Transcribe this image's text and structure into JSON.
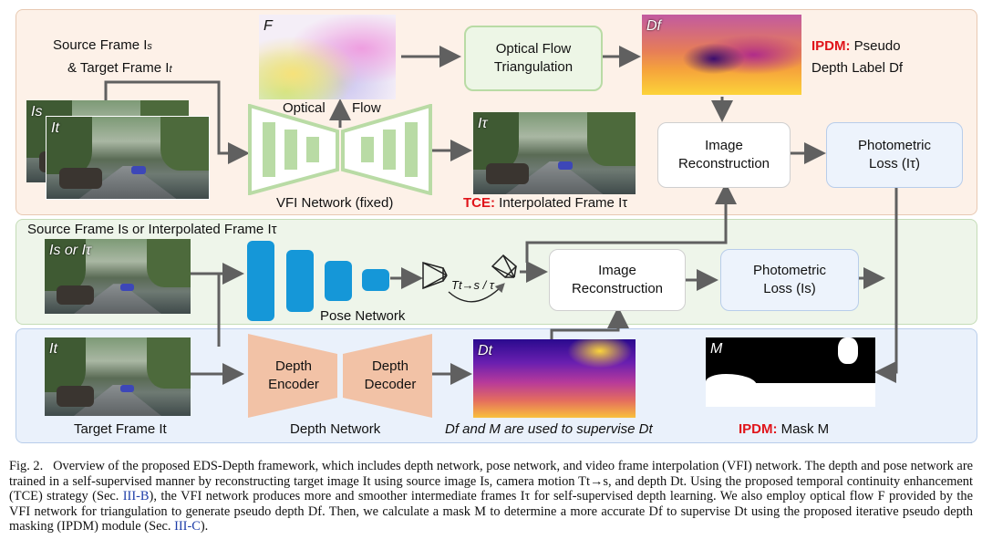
{
  "top": {
    "source_target_line1": "Source Frame I",
    "source_sub": "s",
    "source_target_line2": "& Target Frame I",
    "target_sub": "t",
    "img_is_tag": "Is",
    "img_it_tag": "It",
    "flow_tag": "F",
    "optical_label": "Optical",
    "flow_label": "Flow",
    "vfi_label": "VFI Network (fixed)",
    "oft_line1": "Optical Flow",
    "oft_line2": "Triangulation",
    "df_tag": "Df",
    "ipdm_red": "IPDM:",
    "ipdm_rest": " Pseudo",
    "ipdm_line2": "Depth Label Df",
    "itau_tag": "Iτ",
    "tce_red": "TCE:",
    "tce_rest": " Interpolated Frame Iτ",
    "recon_line1": "Image",
    "recon_line2": "Reconstruction",
    "photo_line1": "Photometric",
    "photo_line2": "Loss (Iτ)"
  },
  "middle": {
    "title": "Source Frame Is or Interpolated Frame Iτ",
    "img_tag": "Is or Iτ",
    "pose_label": "Pose Network",
    "transform_label": "Tt→s / τ",
    "recon_line1": "Image",
    "recon_line2": "Reconstruction",
    "photo_line1": "Photometric",
    "photo_line2": "Loss (Is)"
  },
  "bottom": {
    "img_tag": "It",
    "target_label": "Target Frame It",
    "enc_line1": "Depth",
    "enc_line2": "Encoder",
    "dec_line1": "Depth",
    "dec_line2": "Decoder",
    "depth_net_label": "Depth Network",
    "dt_tag": "Dt",
    "supervise_label": "Df and M are used to supervise Dt",
    "mask_tag": "M",
    "mask_red": "IPDM:",
    "mask_rest": " Mask M"
  },
  "caption": {
    "fig": "Fig. 2.",
    "text1": "Overview of the proposed EDS-Depth framework, which includes depth network, pose network, and video frame interpolation (VFI) network. The depth and pose network are trained in a self-supervised manner by reconstructing target image It using source image Is, camera motion Tt→s, and depth Dt. Using the proposed temporal continuity enhancement (TCE) strategy (Sec. ",
    "ref1": "III-B",
    "text2": "), the VFI network produces more and smoother intermediate frames Iτ for self-supervised depth learning. We also employ optical flow F provided by the VFI network for triangulation to generate pseudo depth Df. Then, we calculate a mask M to determine a more accurate Df to supervise Dt using the proposed iterative pseudo depth masking (IPDM) module (Sec. ",
    "ref2": "III-C",
    "text3": ")."
  },
  "colors": {
    "top_panel": "#fdf1e8",
    "mid_panel": "#eef5ea",
    "bot_panel": "#eaf1fb",
    "vfi_green": "#b9dba5",
    "pose_blue": "#1597d8",
    "depth_orange": "#f2c2a6",
    "arrow": "#606060",
    "red": "#e0141a"
  }
}
